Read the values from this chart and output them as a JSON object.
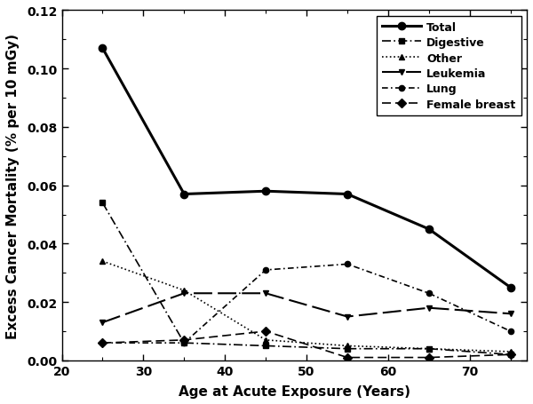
{
  "x": [
    25,
    35,
    45,
    55,
    65,
    75
  ],
  "total": [
    0.107,
    0.057,
    0.058,
    0.057,
    0.045,
    0.025
  ],
  "digestive": [
    0.054,
    0.006,
    0.005,
    0.004,
    0.004,
    0.002
  ],
  "other": [
    0.034,
    0.024,
    0.007,
    0.005,
    0.004,
    0.003
  ],
  "leukemia": [
    0.013,
    0.023,
    0.023,
    0.015,
    0.018,
    0.016
  ],
  "lung": [
    0.006,
    0.006,
    0.031,
    0.033,
    0.023,
    0.01
  ],
  "female_breast": [
    0.006,
    0.007,
    0.01,
    0.001,
    0.001,
    0.002
  ],
  "xlabel": "Age at Acute Exposure (Years)",
  "ylabel": "Excess Cancer Mortality (% per 10 mGy)",
  "xlim": [
    20,
    77
  ],
  "ylim": [
    0.0,
    0.12
  ],
  "yticks": [
    0.0,
    0.02,
    0.04,
    0.06,
    0.08,
    0.1,
    0.12
  ],
  "xticks": [
    20,
    30,
    40,
    50,
    60,
    70
  ],
  "color": "#000000",
  "legend_labels": [
    "Total",
    "Digestive",
    "Other",
    "Leukemia",
    "Lung",
    "Female breast"
  ]
}
